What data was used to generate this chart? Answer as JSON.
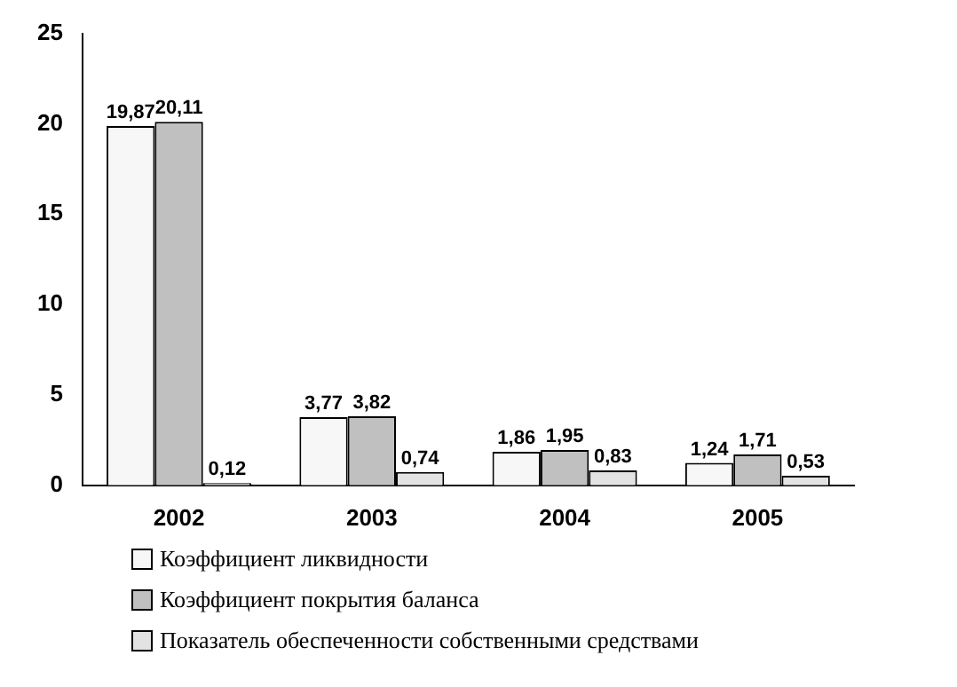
{
  "chart_data": {
    "type": "bar",
    "categories": [
      "2002",
      "2003",
      "2004",
      "2005"
    ],
    "series": [
      {
        "name": "Коэффициент ликвидности",
        "color": "#f7f7f7",
        "values": [
          19.87,
          3.77,
          1.86,
          1.24
        ],
        "value_labels": [
          "19,87",
          "3,77",
          "1,86",
          "1,24"
        ]
      },
      {
        "name": "Коэффициент покрытия баланса",
        "color": "#c0c0c0",
        "values": [
          20.11,
          3.82,
          1.95,
          1.71
        ],
        "value_labels": [
          "20,11",
          "3,82",
          "1,95",
          "1,71"
        ]
      },
      {
        "name": "Показатель обеспеченности собственными средствами",
        "color": "#e3e3e3",
        "values": [
          0.12,
          0.74,
          0.83,
          0.53
        ],
        "value_labels": [
          "0,12",
          "0,74",
          "0,83",
          "0,53"
        ]
      }
    ],
    "ylim": [
      0,
      25
    ],
    "yticks": [
      0,
      5,
      10,
      15,
      20,
      25
    ],
    "grid": false,
    "legend": "bottom"
  }
}
